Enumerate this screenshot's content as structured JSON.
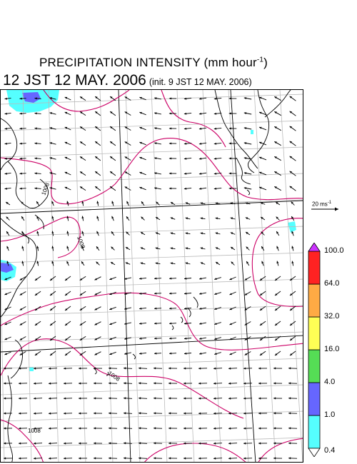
{
  "header": {
    "title": "PRECIPITATION INTENSITY (mm hour",
    "title_exp": "-1",
    "title_close": ")",
    "valid_time": "12 JST 12 MAY. 2006",
    "init_time": "(init. 9 JST 12 MAY. 2006)"
  },
  "reference_vector": {
    "value": "20",
    "unit": "ms",
    "unit_exp": "-1"
  },
  "colorbar": {
    "levels": [
      "0.4",
      "1.0",
      "4.0",
      "16.0",
      "32.0",
      "64.0",
      "100.0"
    ],
    "colors": [
      "#55ffff",
      "#6666ff",
      "#55dd55",
      "#ffff55",
      "#ffaa44",
      "#ff2222",
      "#cc33ff"
    ]
  },
  "contours": {
    "color": "#cc0066",
    "labels": [
      "1008",
      "1008",
      "1008",
      "1008"
    ]
  },
  "map": {
    "land_color": "#000000",
    "grid_color": "#bbbbbb",
    "vector_color": "#000000"
  }
}
